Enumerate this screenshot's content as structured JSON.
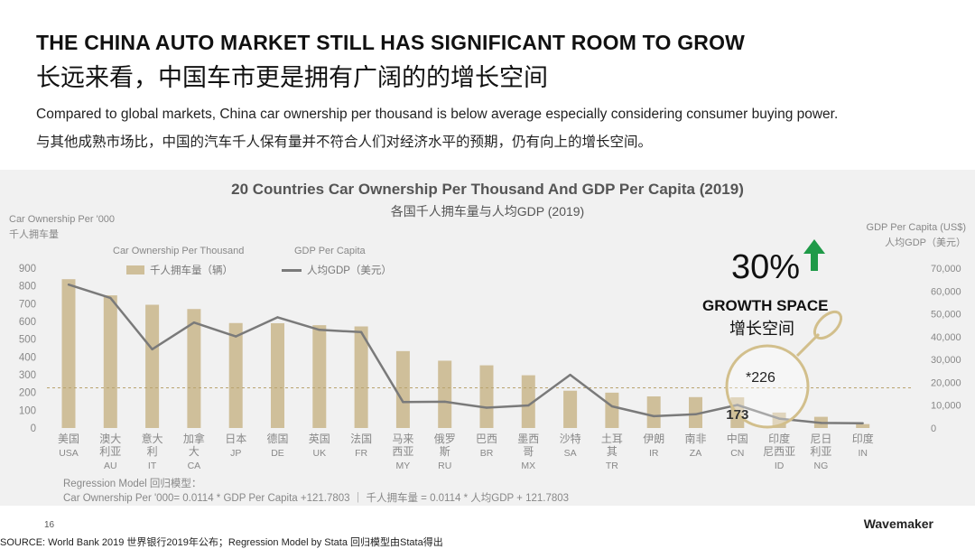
{
  "header": {
    "title_en": "THE CHINA AUTO MARKET STILL HAS SIGNIFICANT ROOM TO GROW",
    "title_cn": "长远来看，中国车市更是拥有广阔的的增长空间",
    "subtitle_en": "Compared to global markets, China car ownership per thousand is below average especially considering consumer buying power.",
    "subtitle_cn": "与其他成熟市场比，中国的汽车千人保有量并不符合人们对经济水平的预期，仍有向上的增长空间。"
  },
  "chart_data": {
    "type": "bar",
    "title": "20 Countries Car Ownership Per Thousand And GDP Per Capita (2019)",
    "subtitle": "各国千人拥车量与人均GDP (2019)",
    "ylabel_left_en": "Car Ownership Per '000",
    "ylabel_left_cn": "千人拥车量",
    "ylabel_right_en": "GDP Per Capita (US$)",
    "ylabel_right_cn": "人均GDP（美元）",
    "legend_bar_title": "Car Ownership Per Thousand",
    "legend_bar_label": "千人拥车量（辆）",
    "legend_line_title": "GDP Per Capita",
    "legend_line_label": "人均GDP（美元）",
    "ylim_left": [
      0,
      900
    ],
    "ylim_right": [
      0,
      70000
    ],
    "yticks_left": [
      "0",
      "100",
      "200",
      "300",
      "400",
      "500",
      "600",
      "700",
      "800",
      "900"
    ],
    "yticks_right": [
      "0",
      "10,000",
      "20,000",
      "30,000",
      "40,000",
      "50,000",
      "60,000",
      "70,000"
    ],
    "categories_cn": [
      "美国",
      "澳大利亚",
      "意大利",
      "加拿大",
      "日本",
      "德国",
      "英国",
      "法国",
      "马来西亚",
      "俄罗斯",
      "巴西",
      "墨西哥",
      "沙特",
      "土耳其",
      "伊朗",
      "南非",
      "中国",
      "印度尼西亚",
      "尼日利亚",
      "印度"
    ],
    "categories_en": [
      "USA",
      "AU",
      "IT",
      "CA",
      "JP",
      "DE",
      "UK",
      "FR",
      "MY",
      "RU",
      "BR",
      "MX",
      "SA",
      "TR",
      "IR",
      "ZA",
      "CN",
      "ID",
      "NG",
      "IN"
    ],
    "series": [
      {
        "name": "Car Ownership Per Thousand",
        "axis": "left",
        "type": "bar",
        "values": [
          838,
          747,
          694,
          670,
          591,
          590,
          579,
          572,
          433,
          379,
          353,
          297,
          210,
          199,
          178,
          174,
          173,
          87,
          63,
          22
        ]
      },
      {
        "name": "GDP Per Capita",
        "axis": "right",
        "type": "line",
        "values": [
          62800,
          57000,
          34500,
          46200,
          40100,
          48500,
          43000,
          42000,
          11400,
          11500,
          8900,
          9900,
          23300,
          9500,
          5200,
          6000,
          10100,
          4100,
          2200,
          2100
        ]
      }
    ],
    "reference_line": {
      "value": 226,
      "axis": "left",
      "label": "*226"
    },
    "annotation_percent": "30%",
    "annotation_en": "GROWTH SPACE",
    "annotation_cn": "增长空间",
    "china_value_label": "173",
    "regression_title": "Regression Model 回归模型：",
    "regression_formula": "Car Ownership Per '000= 0.0114 * GDP Per Capita +121.7803 ｜ 千人拥车量 = 0.0114 * 人均GDP + 121.7803"
  },
  "footer": {
    "page_number": "16",
    "source": "SOURCE: World Bank 2019 世界银行2019年公布；Regression Model by Stata 回归模型由Stata得出",
    "logo": "Wavemaker"
  },
  "colors": {
    "bar": "#cfbf9a",
    "line": "#7a7a7a",
    "panel": "#f1f1f1",
    "arrow": "#1f9a48",
    "magnifier": "#d2bf8c"
  }
}
